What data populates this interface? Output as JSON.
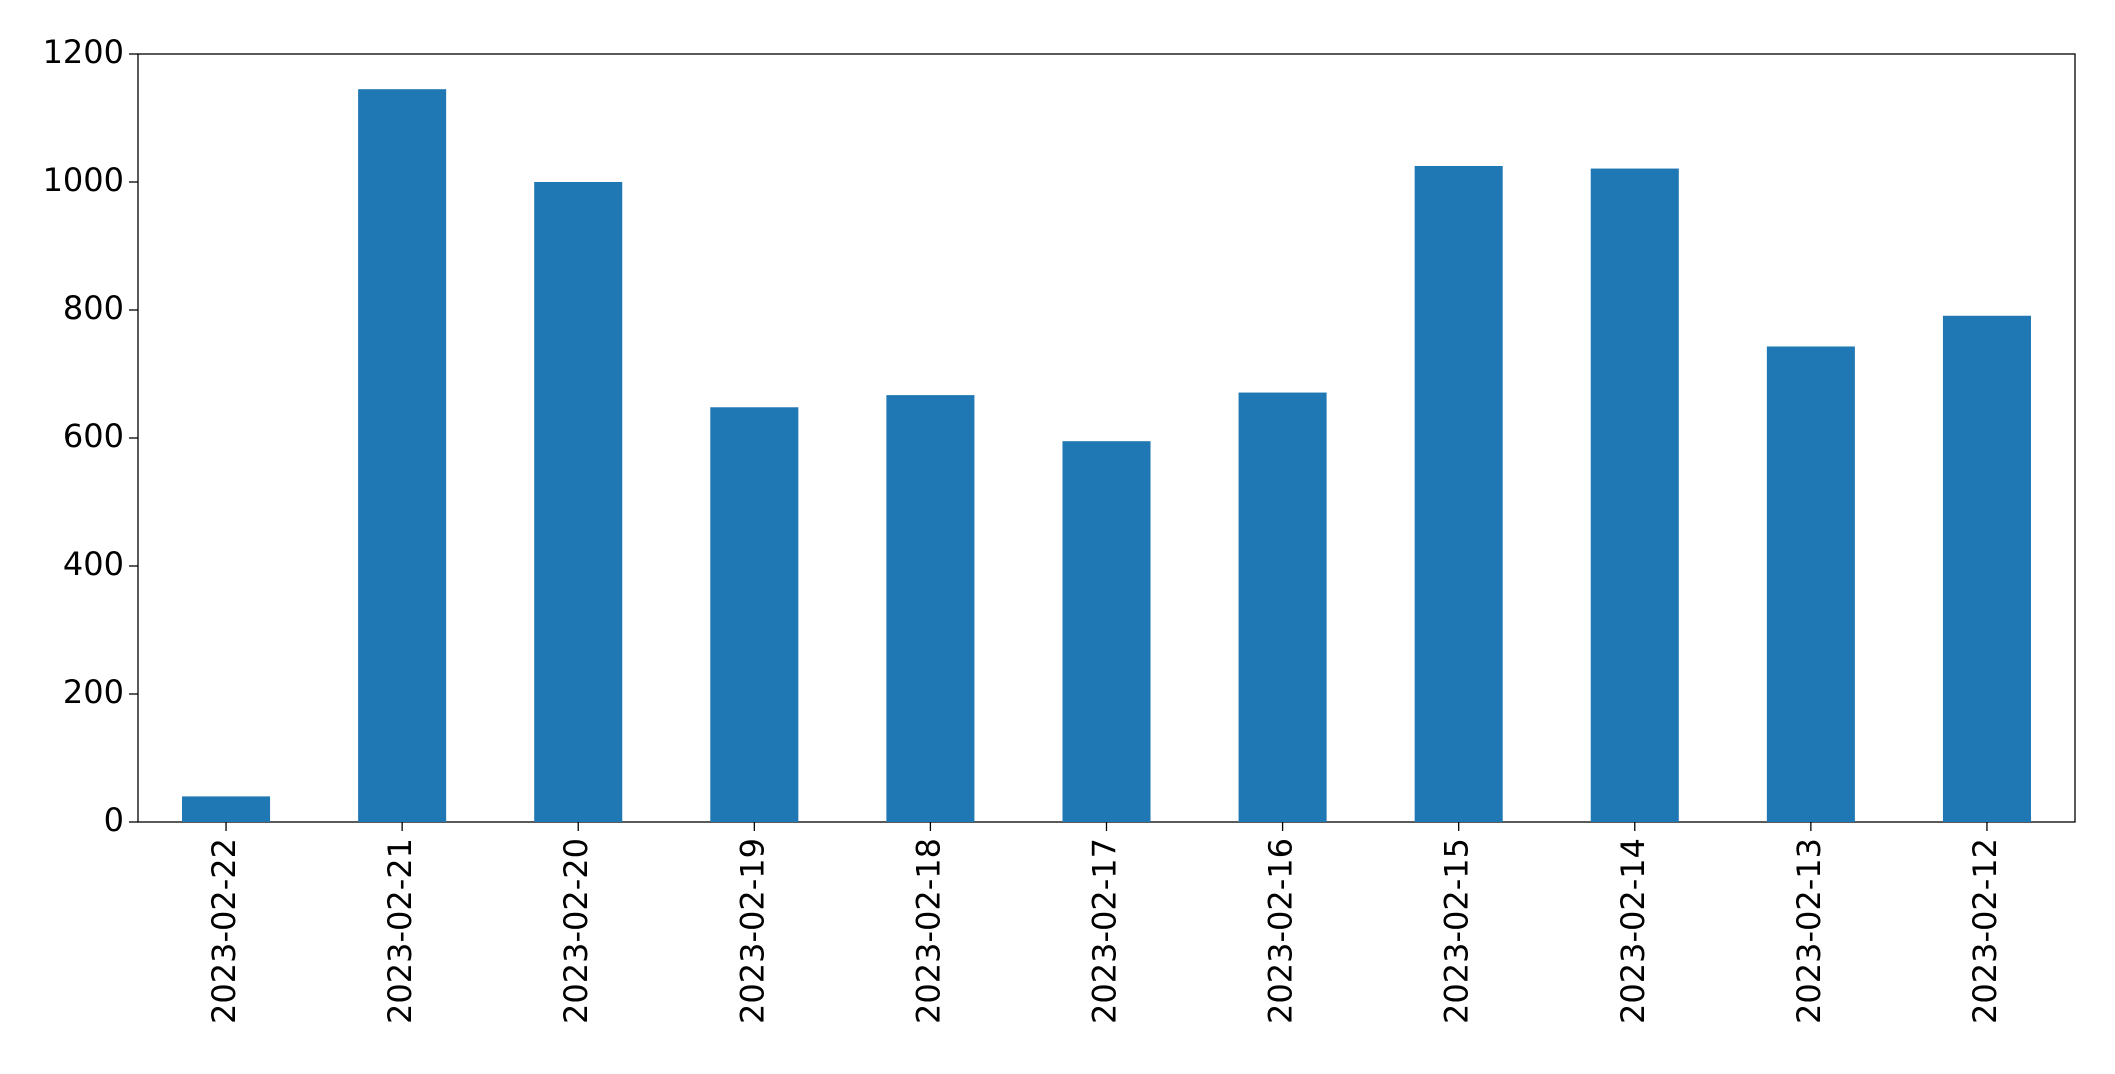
{
  "chart_data": {
    "type": "bar",
    "categories": [
      "2023-02-22",
      "2023-02-21",
      "2023-02-20",
      "2023-02-19",
      "2023-02-18",
      "2023-02-17",
      "2023-02-16",
      "2023-02-15",
      "2023-02-14",
      "2023-02-13",
      "2023-02-12"
    ],
    "values": [
      40,
      1145,
      1000,
      648,
      667,
      595,
      671,
      1025,
      1021,
      743,
      791
    ],
    "color": "#1f77b4",
    "ylim": [
      0,
      1200
    ],
    "yticks": [
      0,
      200,
      400,
      600,
      800,
      1000,
      1200
    ],
    "grid": false
  }
}
